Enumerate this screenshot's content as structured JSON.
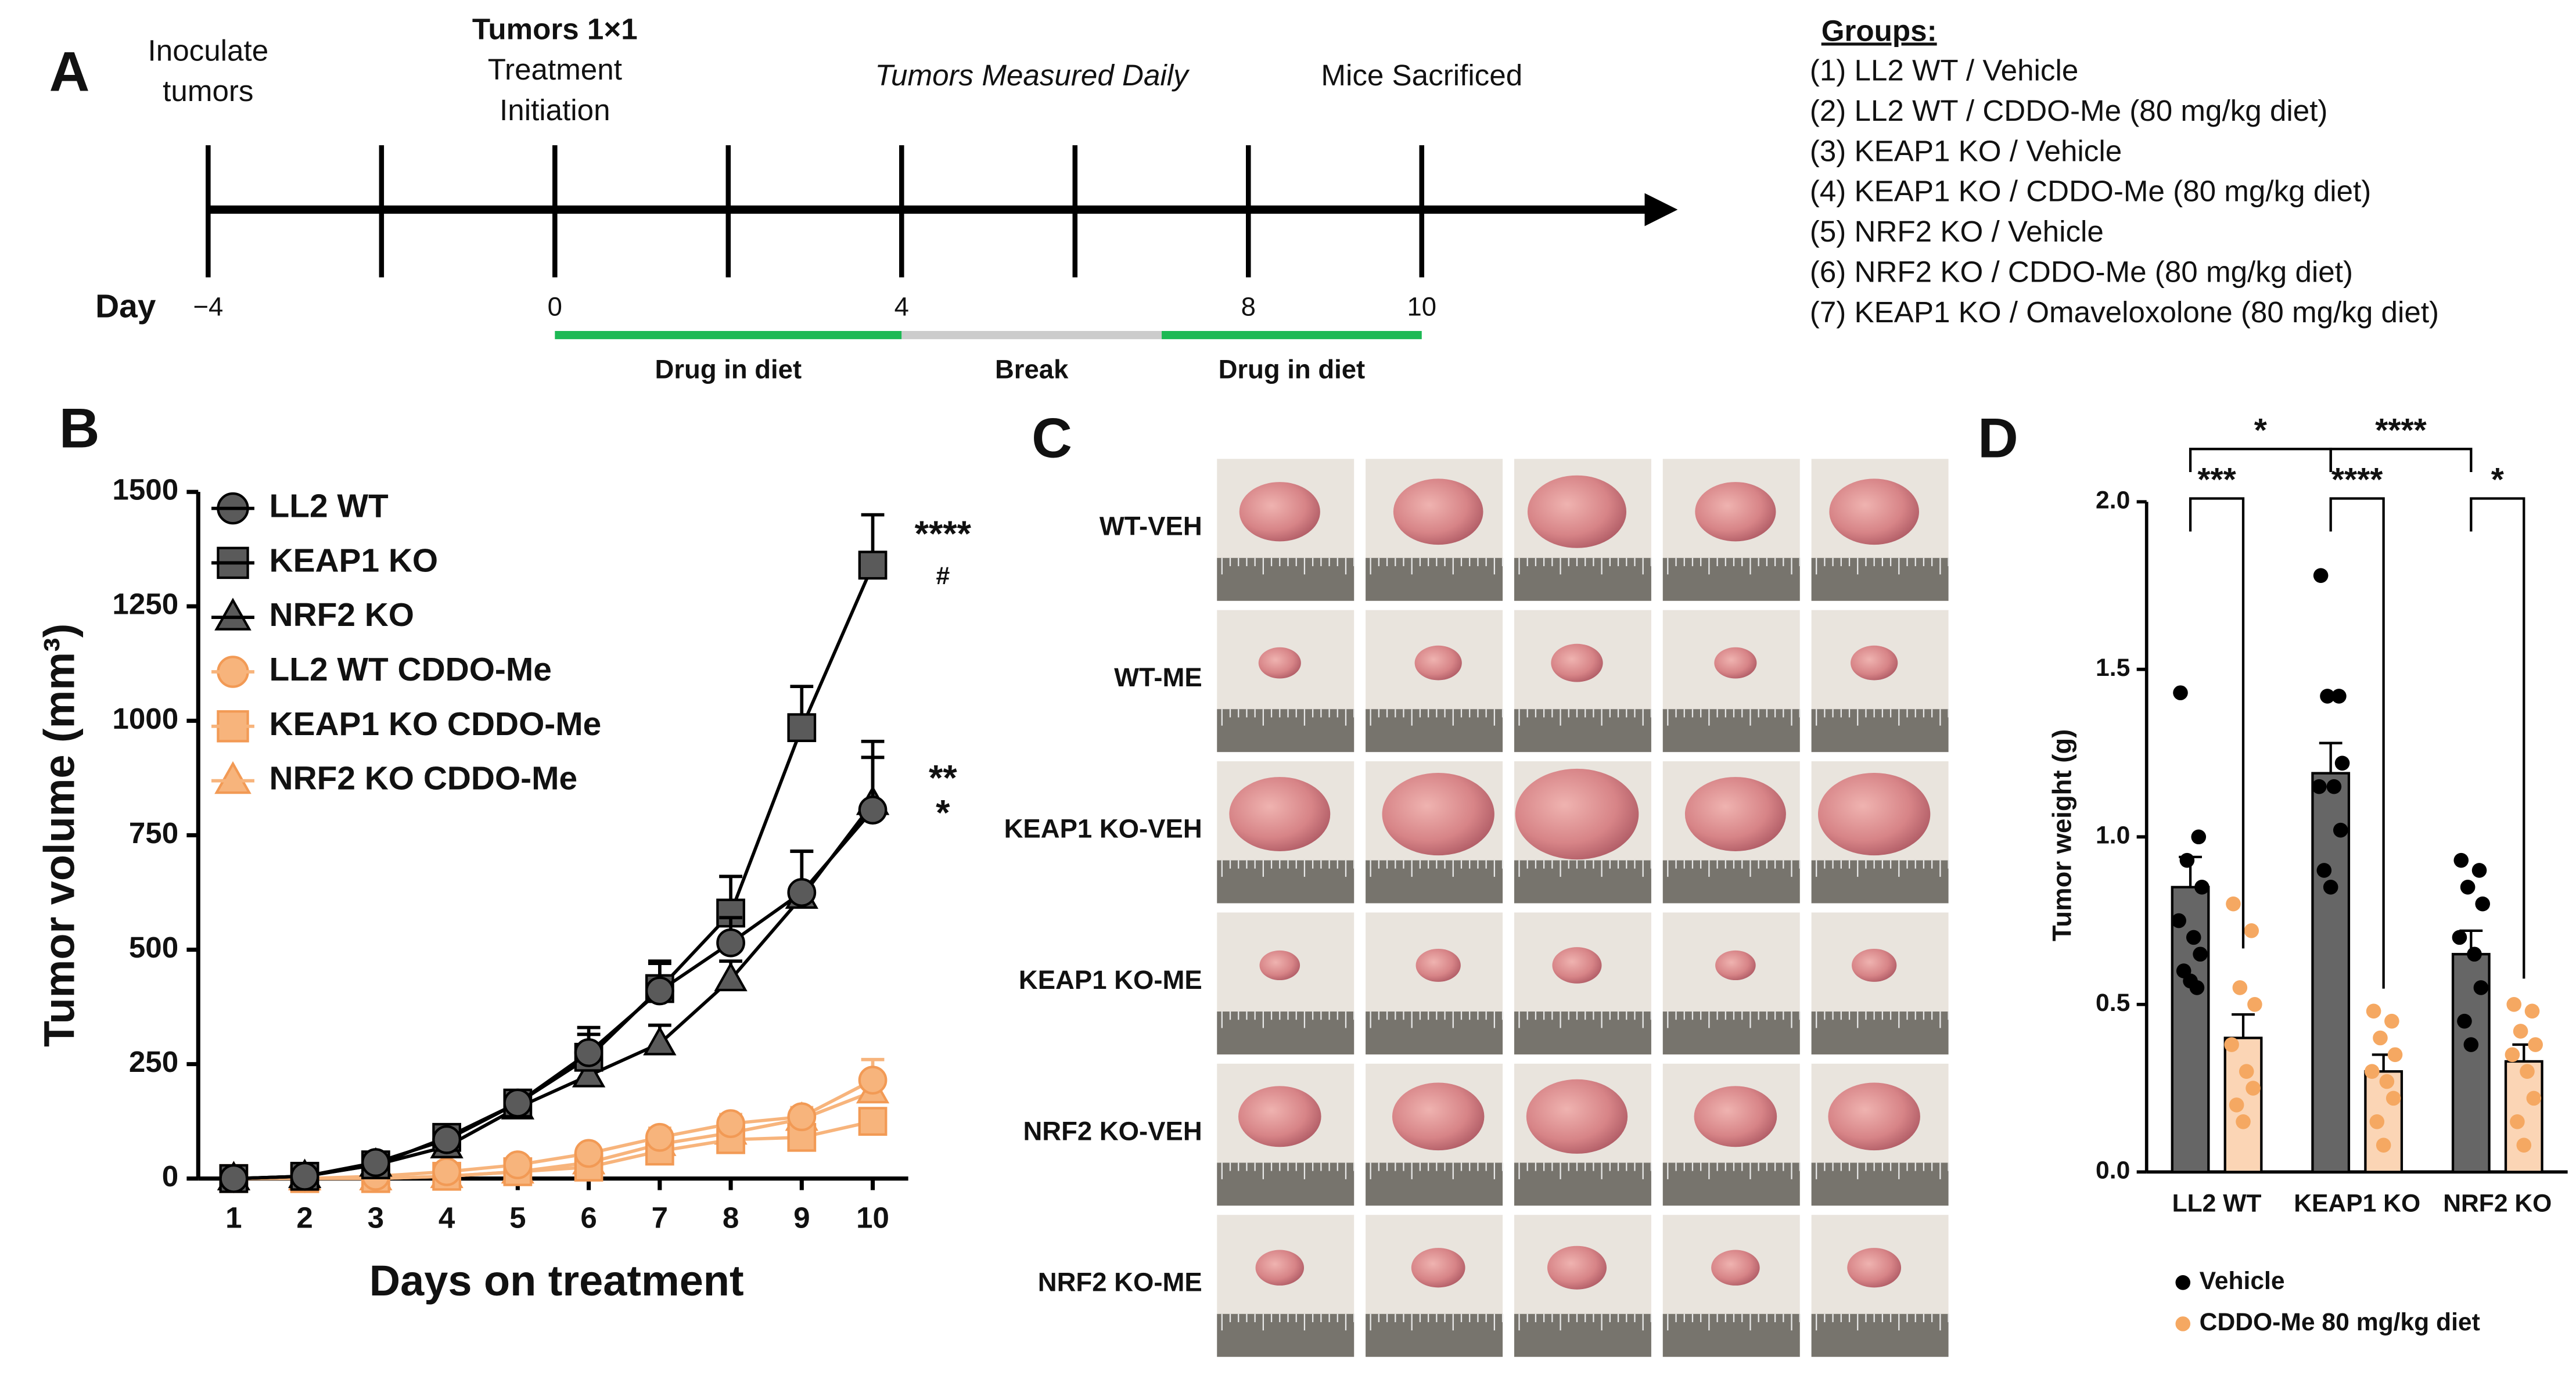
{
  "panel_labels": [
    "A",
    "B",
    "C",
    "D"
  ],
  "timeline": {
    "events": [
      {
        "lines": [
          "Inoculate",
          "tumors"
        ],
        "day": -4
      },
      {
        "lines": [
          "Tumors 1×1",
          "Treatment",
          "Initiation"
        ],
        "day": 0
      },
      {
        "lines": [
          "Tumors Measured Daily"
        ],
        "day": 5.5
      },
      {
        "lines": [
          "Mice Sacrificed"
        ],
        "day": 10
      }
    ],
    "axis_label": "Day",
    "day_ticks": [
      -4,
      -2,
      0,
      2,
      4,
      6,
      8,
      10
    ],
    "day_labels": [
      {
        "value": -4,
        "label": "−4"
      },
      0,
      4,
      8,
      10
    ],
    "phases": [
      {
        "label": "Drug in diet",
        "start": 0,
        "end": 4,
        "color": "#1db954"
      },
      {
        "label": "Break",
        "start": 4,
        "end": 7,
        "color": "#cccccc"
      },
      {
        "label": "Drug in diet",
        "start": 7,
        "end": 10,
        "color": "#1db954"
      }
    ],
    "groups_title": "Groups:",
    "groups": [
      "(1) LL2 WT / Vehicle",
      "(2) LL2 WT / CDDO-Me (80 mg/kg diet)",
      "(3) KEAP1 KO / Vehicle",
      "(4) KEAP1 KO / CDDO-Me (80 mg/kg diet)",
      "(5) NRF2 KO / Vehicle",
      "(6) NRF2 KO / CDDO-Me (80 mg/kg diet)",
      "(7) KEAP1 KO / Omaveloxolone (80 mg/kg diet)"
    ]
  },
  "chart_data": [
    {
      "type": "line",
      "x_label": "Days on treatment",
      "y_label": "Tumor volume (mm³)",
      "x": [
        1,
        2,
        3,
        4,
        5,
        6,
        7,
        8,
        9,
        10
      ],
      "xlim": [
        0.5,
        10.5
      ],
      "xticks": [
        1,
        2,
        3,
        4,
        5,
        6,
        7,
        8,
        9,
        10
      ],
      "ylim": [
        0,
        1500
      ],
      "yticks": [
        0,
        250,
        500,
        750,
        1000,
        1250,
        1500
      ],
      "legend": "upper left",
      "series": [
        {
          "name": "LL2 WT",
          "color": "#5a5a5a",
          "marker": "circle",
          "values": [
            0,
            5,
            35,
            85,
            165,
            275,
            410,
            515,
            625,
            805
          ],
          "errors": [
            2,
            5,
            8,
            15,
            15,
            40,
            60,
            55,
            90,
            150
          ]
        },
        {
          "name": "KEAP1 KO",
          "color": "#5a5a5a",
          "marker": "square",
          "values": [
            0,
            5,
            30,
            90,
            165,
            265,
            415,
            580,
            985,
            1340
          ],
          "errors": [
            2,
            5,
            10,
            15,
            20,
            65,
            60,
            80,
            90,
            110
          ]
        },
        {
          "name": "NRF2 KO",
          "color": "#5a5a5a",
          "marker": "triangle",
          "values": [
            0,
            5,
            30,
            70,
            155,
            225,
            295,
            435,
            615,
            820
          ],
          "errors": [
            2,
            5,
            8,
            15,
            15,
            30,
            40,
            40,
            100,
            100
          ]
        },
        {
          "name": "LL2 WT CDDO-Me",
          "color": "#f7b47c",
          "marker": "circle",
          "values": [
            0,
            0,
            5,
            15,
            30,
            55,
            90,
            120,
            135,
            215
          ],
          "errors": [
            0,
            2,
            3,
            5,
            8,
            15,
            20,
            20,
            20,
            45
          ]
        },
        {
          "name": "KEAP1 KO CDDO-Me",
          "color": "#f7b47c",
          "marker": "square",
          "values": [
            0,
            0,
            0,
            5,
            15,
            25,
            60,
            85,
            90,
            125
          ],
          "errors": [
            0,
            1,
            2,
            3,
            5,
            8,
            10,
            10,
            10,
            15
          ]
        },
        {
          "name": "NRF2 KO CDDO-Me",
          "color": "#f7b47c",
          "marker": "triangle",
          "values": [
            0,
            0,
            0,
            5,
            15,
            35,
            75,
            100,
            130,
            190
          ],
          "errors": [
            0,
            1,
            3,
            5,
            8,
            12,
            15,
            15,
            20,
            30
          ]
        }
      ],
      "annotations": [
        "****",
        "#",
        "**",
        "*"
      ]
    },
    {
      "type": "bar",
      "y_label": "Tumor weight (g)",
      "categories": [
        "LL2 WT",
        "KEAP1 KO",
        "NRF2 KO"
      ],
      "ylim": [
        0,
        2.0
      ],
      "yticks": [
        {
          "value": 0,
          "label": "0.0"
        },
        0.5,
        {
          "value": 1.0,
          "label": "1.0"
        },
        1.5,
        {
          "value": 2.0,
          "label": "2.0"
        }
      ],
      "legend": "bottom",
      "series": [
        {
          "name": "Vehicle",
          "color": "#666666",
          "point_color": "#000000",
          "values": [
            0.85,
            1.19,
            0.65
          ],
          "errors": [
            0.09,
            0.09,
            0.07
          ],
          "points": [
            [
              1.43,
              1.0,
              0.93,
              0.85,
              0.75,
              0.7,
              0.65,
              0.6,
              0.57,
              0.55
            ],
            [
              1.78,
              1.42,
              1.42,
              1.22,
              1.15,
              1.15,
              1.02,
              0.9,
              0.85
            ],
            [
              0.93,
              0.9,
              0.85,
              0.8,
              0.7,
              0.65,
              0.55,
              0.45,
              0.38
            ]
          ]
        },
        {
          "name": "CDDO-Me 80 mg/kg diet",
          "color": "#fbd5b5",
          "point_color": "#f5a862",
          "values": [
            0.4,
            0.3,
            0.33
          ],
          "errors": [
            0.07,
            0.05,
            0.05
          ],
          "points": [
            [
              0.8,
              0.72,
              0.55,
              0.5,
              0.38,
              0.3,
              0.25,
              0.2,
              0.15
            ],
            [
              0.48,
              0.45,
              0.4,
              0.35,
              0.3,
              0.27,
              0.22,
              0.15,
              0.08
            ],
            [
              0.5,
              0.48,
              0.42,
              0.38,
              0.35,
              0.3,
              0.22,
              0.15,
              0.08
            ]
          ]
        }
      ],
      "significance": [
        "*",
        "****",
        "***",
        "****",
        "*"
      ]
    }
  ],
  "photo_grid": {
    "rows": [
      "WT-VEH",
      "WT-ME",
      "KEAP1 KO-VEH",
      "KEAP1 KO-ME",
      "NRF2 KO-VEH",
      "NRF2 KO-ME"
    ]
  }
}
